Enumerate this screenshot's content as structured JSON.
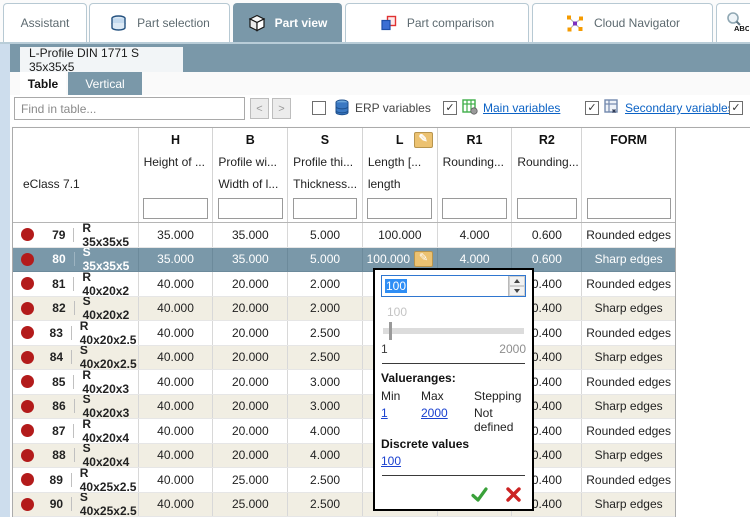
{
  "colors": {
    "accent_slate": "#7a98a9",
    "selected_row": "#7a98a9",
    "toolbar_link": "#0b62c5",
    "popup_link": "#1a41d0",
    "status_dot_red": "#b31b1b",
    "row_band_cream": "#f1eee3",
    "pencil_button": "#ecc271",
    "confirm_green": "#3aa13a",
    "cancel_red": "#cc2222"
  },
  "tabs": [
    {
      "label": "Assistant",
      "active": false
    },
    {
      "label": "Part selection",
      "active": false,
      "icon": "layers-icon"
    },
    {
      "label": "Part view",
      "active": true,
      "icon": "cube-icon"
    },
    {
      "label": "Part comparison",
      "active": false,
      "icon": "compare-icon"
    },
    {
      "label": "Cloud Navigator",
      "active": false,
      "icon": "network-icon"
    },
    {
      "label": "",
      "active": false,
      "icon": "text-search-abc-icon"
    }
  ],
  "part_tab": "L-Profile DIN 1771 S 35x35x5",
  "subtabs": {
    "table": "Table",
    "vertical": "Vertical"
  },
  "toolbar": {
    "find_placeholder": "Find in table...",
    "prev_label": "<",
    "next_label": ">",
    "erp_label": "ERP variables",
    "erp_checked": false,
    "main_label": "Main variables",
    "main_checked": true,
    "secondary_label": "Secondary variables",
    "secondary_checked": true,
    "extra_checked": true,
    "check_glyph": "✓"
  },
  "table": {
    "eclass": "eClass 7.1",
    "columns": [
      {
        "letter": "H",
        "sub1": "Height of ...",
        "sub2": ""
      },
      {
        "letter": "B",
        "sub1": "Profile wi...",
        "sub2": "Width of l..."
      },
      {
        "letter": "S",
        "sub1": "Profile thi...",
        "sub2": "Thickness..."
      },
      {
        "letter": "L",
        "sub1": "Length [...",
        "sub2": "length",
        "editable": true
      },
      {
        "letter": "R1",
        "sub1": "Rounding...",
        "sub2": ""
      },
      {
        "letter": "R2",
        "sub1": "Rounding...",
        "sub2": ""
      },
      {
        "letter": "FORM",
        "sub1": "",
        "sub2": ""
      }
    ],
    "pencil_glyph": "✎",
    "rows": [
      {
        "num": "79",
        "code": "R 35x35x5",
        "h": "35.000",
        "b": "35.000",
        "s": "5.000",
        "l": "100.000",
        "r1": "4.000",
        "r2": "0.600",
        "form": "Rounded edges",
        "selected": false,
        "edit_icon": false
      },
      {
        "num": "80",
        "code": "S 35x35x5",
        "h": "35.000",
        "b": "35.000",
        "s": "5.000",
        "l": "100.000",
        "r1": "4.000",
        "r2": "0.600",
        "form": "Sharp edges",
        "selected": true,
        "edit_icon": true
      },
      {
        "num": "81",
        "code": "R 40x20x2",
        "h": "40.000",
        "b": "20.000",
        "s": "2.000",
        "l": "",
        "r1": "",
        "r2": "0.400",
        "form": "Rounded edges",
        "selected": false,
        "edit_icon": false
      },
      {
        "num": "82",
        "code": "S 40x20x2",
        "h": "40.000",
        "b": "20.000",
        "s": "2.000",
        "l": "",
        "r1": "",
        "r2": "0.400",
        "form": "Sharp edges",
        "selected": false,
        "edit_icon": false
      },
      {
        "num": "83",
        "code": "R 40x20x2.5",
        "h": "40.000",
        "b": "20.000",
        "s": "2.500",
        "l": "",
        "r1": "",
        "r2": "0.400",
        "form": "Rounded edges",
        "selected": false,
        "edit_icon": false
      },
      {
        "num": "84",
        "code": "S 40x20x2.5",
        "h": "40.000",
        "b": "20.000",
        "s": "2.500",
        "l": "",
        "r1": "",
        "r2": "0.400",
        "form": "Sharp edges",
        "selected": false,
        "edit_icon": false
      },
      {
        "num": "85",
        "code": "R 40x20x3",
        "h": "40.000",
        "b": "20.000",
        "s": "3.000",
        "l": "",
        "r1": "",
        "r2": "0.400",
        "form": "Rounded edges",
        "selected": false,
        "edit_icon": false
      },
      {
        "num": "86",
        "code": "S 40x20x3",
        "h": "40.000",
        "b": "20.000",
        "s": "3.000",
        "l": "",
        "r1": "",
        "r2": "0.400",
        "form": "Sharp edges",
        "selected": false,
        "edit_icon": false
      },
      {
        "num": "87",
        "code": "R 40x20x4",
        "h": "40.000",
        "b": "20.000",
        "s": "4.000",
        "l": "",
        "r1": "",
        "r2": "0.400",
        "form": "Rounded edges",
        "selected": false,
        "edit_icon": false
      },
      {
        "num": "88",
        "code": "S 40x20x4",
        "h": "40.000",
        "b": "20.000",
        "s": "4.000",
        "l": "",
        "r1": "",
        "r2": "0.400",
        "form": "Sharp edges",
        "selected": false,
        "edit_icon": false
      },
      {
        "num": "89",
        "code": "R 40x25x2.5",
        "h": "40.000",
        "b": "25.000",
        "s": "2.500",
        "l": "",
        "r1": "",
        "r2": "0.400",
        "form": "Rounded edges",
        "selected": false,
        "edit_icon": false
      },
      {
        "num": "90",
        "code": "S 40x25x2.5",
        "h": "40.000",
        "b": "25.000",
        "s": "2.500",
        "l": "",
        "r1": "",
        "r2": "0.400",
        "form": "Sharp edges",
        "selected": false,
        "edit_icon": false
      }
    ]
  },
  "popup": {
    "value": "100",
    "slider_ghost_label": "100",
    "scale_min": "1",
    "scale_max": "2000",
    "valueranges_title": "Valueranges:",
    "col_min": "Min",
    "col_max": "Max",
    "col_stepping": "Stepping",
    "min_link": "1",
    "max_link": "2000",
    "stepping_value": "Not defined",
    "discrete_title": "Discrete values",
    "discrete_link": "100"
  }
}
